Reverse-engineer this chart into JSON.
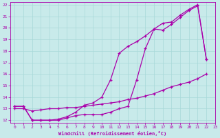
{
  "bg_color": "#c8eaea",
  "line_color": "#aa00aa",
  "xlim": [
    -0.5,
    23
  ],
  "ylim": [
    11.8,
    22.2
  ],
  "xticks": [
    0,
    1,
    2,
    3,
    4,
    5,
    6,
    7,
    8,
    9,
    10,
    11,
    12,
    13,
    14,
    15,
    16,
    17,
    18,
    19,
    20,
    21,
    22,
    23
  ],
  "yticks": [
    12,
    13,
    14,
    15,
    16,
    17,
    18,
    19,
    20,
    21,
    22
  ],
  "xlabel": "Windchill (Refroidissement éolien,°C)",
  "line1_x": [
    0,
    1,
    2,
    3,
    4,
    5,
    6,
    7,
    8,
    9,
    10,
    11,
    12,
    13,
    14,
    15,
    16,
    17,
    18,
    19,
    20,
    21,
    22
  ],
  "line1_y": [
    13.2,
    13.2,
    12.0,
    12.0,
    12.0,
    12.0,
    12.2,
    12.4,
    12.5,
    12.5,
    12.5,
    12.7,
    13.0,
    13.2,
    15.5,
    18.2,
    19.9,
    19.8,
    20.3,
    20.9,
    21.5,
    21.9,
    17.3
  ],
  "line2_x": [
    0,
    1,
    2,
    3,
    4,
    5,
    6,
    7,
    8,
    9,
    10,
    11,
    12,
    13,
    14,
    15,
    16,
    17,
    18,
    19,
    20,
    21,
    22
  ],
  "line2_y": [
    13.2,
    13.2,
    12.0,
    12.0,
    12.0,
    12.1,
    12.3,
    12.7,
    13.3,
    13.5,
    14.0,
    15.5,
    17.8,
    18.4,
    18.8,
    19.3,
    19.9,
    20.4,
    20.5,
    21.1,
    21.6,
    22.0,
    17.3
  ],
  "line3_x": [
    0,
    1,
    2,
    3,
    4,
    5,
    6,
    7,
    8,
    9,
    10,
    11,
    12,
    13,
    14,
    15,
    16,
    17,
    18,
    19,
    20,
    21,
    22
  ],
  "line3_y": [
    13.0,
    13.0,
    12.8,
    12.9,
    13.0,
    13.0,
    13.1,
    13.1,
    13.2,
    13.3,
    13.4,
    13.5,
    13.6,
    13.8,
    13.9,
    14.1,
    14.3,
    14.6,
    14.9,
    15.1,
    15.3,
    15.6,
    16.0
  ]
}
